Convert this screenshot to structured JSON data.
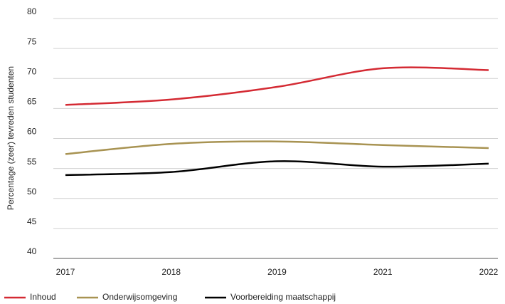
{
  "chart_data": {
    "type": "line",
    "y_label": "Percentage (zeer) tevreden studenten",
    "categories": [
      "2017",
      "2018",
      "2019",
      "2021",
      "2022"
    ],
    "series": [
      {
        "name": "Inhoud",
        "color": "#d42a33",
        "values": [
          65.6,
          66.5,
          68.6,
          71.7,
          71.4
        ]
      },
      {
        "name": "Onderwijsomgeving",
        "color": "#a89352",
        "values": [
          57.4,
          59.1,
          59.5,
          58.9,
          58.4
        ]
      },
      {
        "name": "Voorbereiding maatschappij",
        "color": "#000000",
        "values": [
          53.9,
          54.4,
          56.2,
          55.3,
          55.8
        ]
      }
    ],
    "ylim": [
      40,
      80
    ],
    "yticks": [
      40,
      45,
      50,
      55,
      60,
      65,
      70,
      75,
      80
    ],
    "grid": true,
    "legend": "bottom"
  }
}
